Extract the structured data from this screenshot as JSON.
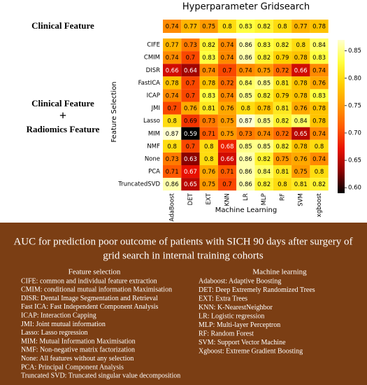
{
  "chart_data": [
    {
      "type": "heatmap",
      "title": "Hyperparameter Gridsearch",
      "values": [
        [
          0.74,
          0.77,
          0.75,
          0.8,
          0.83,
          0.82,
          0.8,
          0.77,
          0.78
        ]
      ]
    },
    {
      "type": "heatmap",
      "xlabel": "Machine Learning",
      "ylabel": "Feature Selection",
      "x": [
        "AdaBoost",
        "DET",
        "EXT",
        "KNN",
        "LR",
        "MLP",
        "RF",
        "SVM",
        "xgboost"
      ],
      "y": [
        "CIFE",
        "CMIM",
        "DISR",
        "FastICA",
        "ICAP",
        "JMI",
        "Lasso",
        "MIM",
        "NMF",
        "None",
        "PCA",
        "TruncatedSVD"
      ],
      "values": [
        [
          0.77,
          0.73,
          0.82,
          0.74,
          0.86,
          0.83,
          0.82,
          0.8,
          0.84
        ],
        [
          0.74,
          0.7,
          0.83,
          0.74,
          0.86,
          0.82,
          0.79,
          0.78,
          0.83
        ],
        [
          0.66,
          0.64,
          0.74,
          0.7,
          0.74,
          0.75,
          0.72,
          0.66,
          0.74
        ],
        [
          0.78,
          0.7,
          0.78,
          0.72,
          0.84,
          0.85,
          0.81,
          0.78,
          0.76
        ],
        [
          0.74,
          0.7,
          0.83,
          0.74,
          0.85,
          0.82,
          0.79,
          0.78,
          0.83
        ],
        [
          0.7,
          0.76,
          0.81,
          0.76,
          0.8,
          0.78,
          0.81,
          0.76,
          0.78
        ],
        [
          0.8,
          0.69,
          0.73,
          0.75,
          0.87,
          0.85,
          0.82,
          0.84,
          0.78
        ],
        [
          0.87,
          0.59,
          0.71,
          0.75,
          0.73,
          0.74,
          0.72,
          0.65,
          0.74
        ],
        [
          0.8,
          0.7,
          0.8,
          0.68,
          0.85,
          0.85,
          0.82,
          0.78,
          0.8
        ],
        [
          0.73,
          0.63,
          0.8,
          0.66,
          0.86,
          0.82,
          0.75,
          0.76,
          0.74
        ],
        [
          0.71,
          0.67,
          0.76,
          0.71,
          0.86,
          0.84,
          0.81,
          0.75,
          0.8
        ],
        [
          0.86,
          0.65,
          0.75,
          0.7,
          0.86,
          0.82,
          0.8,
          0.81,
          0.82
        ]
      ],
      "clim": [
        0.59,
        0.87
      ],
      "cticks": [
        {
          "value": 0.6,
          "label": "0.60"
        },
        0.65,
        {
          "value": 0.7,
          "label": "0.70"
        },
        0.75,
        {
          "value": 0.8,
          "label": "0.80"
        },
        0.85
      ],
      "colormap": [
        "#000000",
        "#8b0000",
        "#e81000",
        "#ff5a00",
        "#ff9a00",
        "#ffd000",
        "#ffff40",
        "#ffffd0"
      ]
    }
  ],
  "side_labels": {
    "clinical": "Clinical Feature",
    "combined": [
      "Clinical Feature",
      "+",
      "Radiomics Feature"
    ]
  },
  "panel": {
    "title": [
      "AUC for prediction poor outcome of patients with SICH 90 days after surgery of",
      "grid search  in internal training cohorts"
    ],
    "feature_selection": {
      "heading": "Feature selection",
      "items": [
        "CIFE: common and individual feature extraction",
        "CMIM: conditional mutual information Maximisation",
        "DISR: Dental Image Segmentation and Retrieval",
        "Fast ICA: Fast Independent Component Analysis",
        "ICAP: Interaction Capping",
        "JMI: Joint mutual information",
        "Lasso: Lasso regression",
        "MIM: Mutual Information Maximisation",
        "NMF: Non-negative matrix factorization",
        "None: All features without any selection",
        "PCA: Principal Component Analysis",
        "Truncated SVD: Truncated singular value decomposition"
      ]
    },
    "machine_learning": {
      "heading": "Machine learning",
      "items": [
        "Adaboost: Adaptive Boosting",
        "DET: Deep Extremely Randomized Trees",
        "EXT: Extra Trees",
        "KNN: K-NearestNeighbor",
        "LR: Logistic regression",
        "MLP: Multi-layer Perceptron",
        "RF: Random Forest",
        "SVM: Support Vector Machine",
        "Xgboost: Extreme Gradient Boosting"
      ]
    }
  }
}
